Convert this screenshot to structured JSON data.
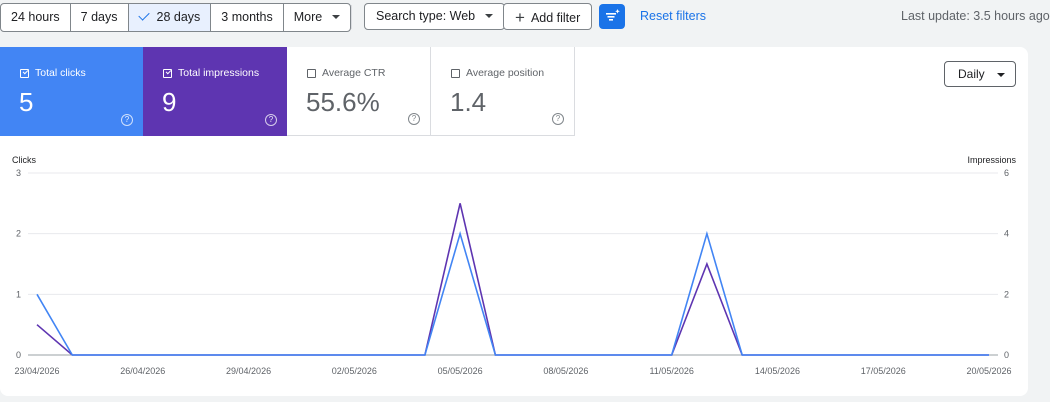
{
  "toolbar": {
    "date_ranges": [
      "24 hours",
      "7 days",
      "28 days",
      "3 months"
    ],
    "active_range": "28 days",
    "more_label": "More",
    "search_type_label": "Search type: Web",
    "add_filter_label": "Add filter",
    "reset_filters_label": "Reset filters",
    "last_update": "Last update: 3.5 hours ago"
  },
  "metrics": {
    "clicks": {
      "label": "Total clicks",
      "value": "5",
      "checked": true,
      "color": "#4285f4"
    },
    "impressions": {
      "label": "Total impressions",
      "value": "9",
      "checked": true,
      "color": "#5e35b1"
    },
    "ctr": {
      "label": "Average CTR",
      "value": "55.6%",
      "checked": false
    },
    "position": {
      "label": "Average position",
      "value": "1.4",
      "checked": false
    },
    "help_glyph": "?"
  },
  "granularity": {
    "selected": "Daily"
  },
  "chart_data": {
    "type": "line",
    "left_axis_title": "Clicks",
    "right_axis_title": "Impressions",
    "left_ticks": [
      "3",
      "2",
      "1",
      "0"
    ],
    "right_ticks": [
      "6",
      "4",
      "2",
      "0"
    ],
    "left_ylim": [
      0,
      3
    ],
    "right_ylim": [
      0,
      6
    ],
    "grid": true,
    "x_tick_labels": [
      "23/04/2026",
      "26/04/2026",
      "29/04/2026",
      "02/05/2026",
      "05/05/2026",
      "08/05/2026",
      "11/05/2026",
      "14/05/2026",
      "17/05/2026",
      "20/05/2026"
    ],
    "x": [
      "23/04/2026",
      "24/04/2026",
      "25/04/2026",
      "26/04/2026",
      "27/04/2026",
      "28/04/2026",
      "29/04/2026",
      "30/04/2026",
      "01/05/2026",
      "02/05/2026",
      "03/05/2026",
      "04/05/2026",
      "05/05/2026",
      "06/05/2026",
      "07/05/2026",
      "08/05/2026",
      "09/05/2026",
      "10/05/2026",
      "11/05/2026",
      "12/05/2026",
      "13/05/2026",
      "14/05/2026",
      "15/05/2026",
      "16/05/2026",
      "17/05/2026",
      "18/05/2026",
      "19/05/2026",
      "20/05/2026"
    ],
    "series": [
      {
        "name": "Clicks",
        "axis": "left",
        "color": "#4285f4",
        "values": [
          1,
          0,
          0,
          0,
          0,
          0,
          0,
          0,
          0,
          0,
          0,
          0,
          2,
          0,
          0,
          0,
          0,
          0,
          0,
          2,
          0,
          0,
          0,
          0,
          0,
          0,
          0,
          0
        ]
      },
      {
        "name": "Impressions",
        "axis": "right",
        "color": "#5e35b1",
        "values": [
          1,
          0,
          0,
          0,
          0,
          0,
          0,
          0,
          0,
          0,
          0,
          0,
          5,
          0,
          0,
          0,
          0,
          0,
          0,
          3,
          0,
          0,
          0,
          0,
          0,
          0,
          0,
          0
        ]
      }
    ]
  }
}
